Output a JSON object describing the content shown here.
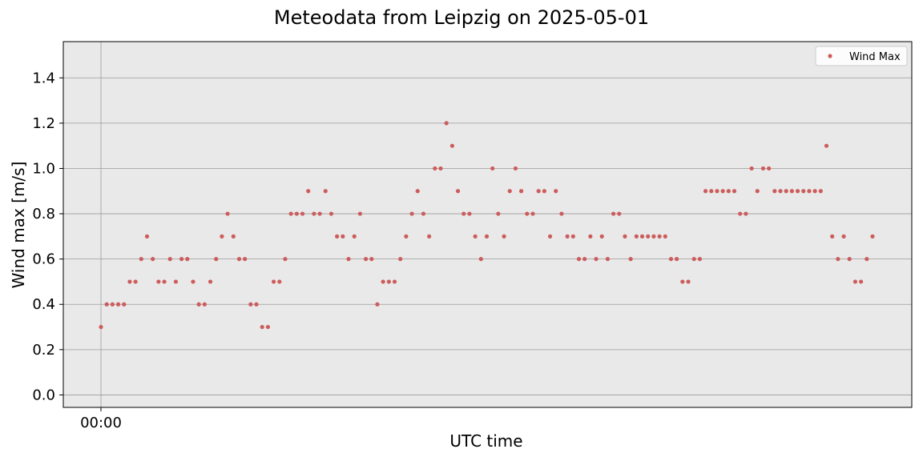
{
  "chart_data": {
    "type": "scatter",
    "title": "Meteodata from Leipzig on 2025-05-01",
    "xlabel": "UTC time",
    "ylabel": "Wind max [m/s]",
    "xtick_labels": [
      "00:00"
    ],
    "ylim": [
      -0.055,
      1.56
    ],
    "yticks": [
      "0.0",
      "0.2",
      "0.4",
      "0.6",
      "0.8",
      "1.0",
      "1.2",
      "1.4"
    ],
    "grid": true,
    "legend": {
      "position": "top-right",
      "entries": [
        "Wind Max"
      ]
    },
    "background_color": "#e9e9e9",
    "series": [
      {
        "name": "Wind Max",
        "color": "#cd5c5c",
        "values": [
          0.3,
          0.4,
          0.4,
          0.4,
          0.4,
          0.5,
          0.5,
          0.6,
          0.7,
          0.6,
          0.5,
          0.5,
          0.6,
          0.5,
          0.6,
          0.6,
          0.5,
          0.4,
          0.4,
          0.5,
          0.6,
          0.7,
          0.8,
          0.7,
          0.6,
          0.6,
          0.4,
          0.4,
          0.3,
          0.3,
          0.5,
          0.5,
          0.6,
          0.8,
          0.8,
          0.8,
          0.9,
          0.8,
          0.8,
          0.9,
          0.8,
          0.7,
          0.7,
          0.6,
          0.7,
          0.8,
          0.6,
          0.6,
          0.4,
          0.5,
          0.5,
          0.5,
          0.6,
          0.7,
          0.8,
          0.9,
          0.8,
          0.7,
          1.0,
          1.0,
          1.2,
          1.1,
          0.9,
          0.8,
          0.8,
          0.7,
          0.6,
          0.7,
          1.0,
          0.8,
          0.7,
          0.9,
          1.0,
          0.9,
          0.8,
          0.8,
          0.9,
          0.9,
          0.7,
          0.9,
          0.8,
          0.7,
          0.7,
          0.6,
          0.6,
          0.7,
          0.6,
          0.7,
          0.6,
          0.8,
          0.8,
          0.7,
          0.6,
          0.7,
          0.7,
          0.7,
          0.7,
          0.7,
          0.7,
          0.6,
          0.6,
          0.5,
          0.5,
          0.6,
          0.6,
          0.9,
          0.9,
          0.9,
          0.9,
          0.9,
          0.9,
          0.8,
          0.8,
          1.0,
          0.9,
          1.0,
          1.0,
          0.9,
          0.9,
          0.9,
          0.9,
          0.9,
          0.9,
          0.9,
          0.9,
          0.9,
          1.1,
          0.7,
          0.6,
          0.7,
          0.6,
          0.5,
          0.5,
          0.6,
          0.7
        ]
      }
    ]
  }
}
